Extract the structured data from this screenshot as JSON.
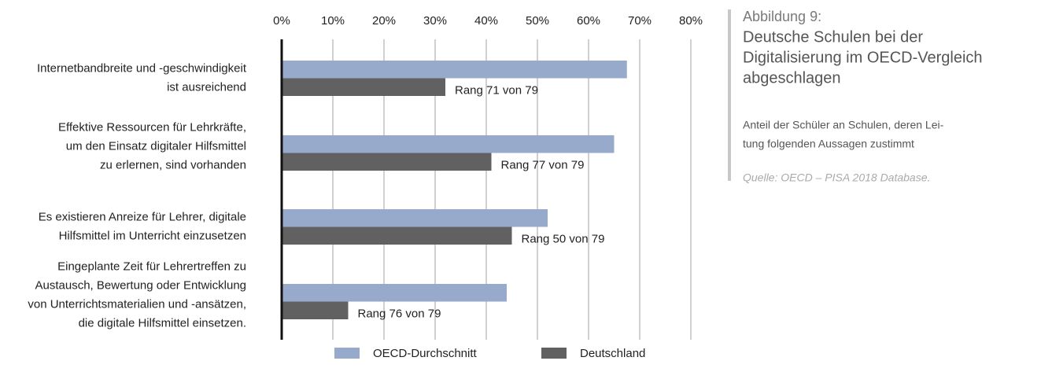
{
  "chart_data": {
    "type": "barh",
    "figure_label": "Abbildung 9:",
    "title": [
      "Deutsche Schulen bei der",
      "Digitalisierung im OECD-Vergleich",
      "abgeschlagen"
    ],
    "subtitle": [
      "Anteil der Schüler an Schulen, deren Lei-",
      "tung folgenden Aussagen zustimmt"
    ],
    "source": "Quelle: OECD – PISA 2018 Database.",
    "categories": [
      [
        "Internetbandbreite und -geschwindigkeit",
        "ist ausreichend"
      ],
      [
        "Effektive Ressourcen für Lehrkräfte,",
        "um den Einsatz digitaler Hilfsmittel",
        "zu erlernen, sind vorhanden"
      ],
      [
        "Es existieren Anreize für Lehrer, digitale",
        "Hilfsmittel im Unterricht einzusetzen"
      ],
      [
        "Eingeplante Zeit für Lehrertreffen zu",
        "Austausch, Bewertung oder Entwicklung",
        "von Unterrichtsmaterialien und -ansätzen,",
        "die digitale Hilfsmittel einsetzen."
      ]
    ],
    "series": [
      {
        "name": "OECD-Durchschnitt",
        "color": "#98aacb",
        "values": [
          67.5,
          65,
          52,
          44
        ]
      },
      {
        "name": "Deutschland",
        "color": "#616161",
        "values": [
          32,
          41,
          45,
          13
        ],
        "annotations": [
          "Rang 71 von 79",
          "Rang 77 von 79",
          "Rang 50 von 79",
          "Rang 76 von 79"
        ]
      }
    ],
    "xlim": [
      0,
      80
    ],
    "xticks": [
      {
        "value": 0,
        "label": "0%"
      },
      {
        "value": 10,
        "label": "10%"
      },
      {
        "value": 20,
        "label": "20%"
      },
      {
        "value": 30,
        "label": "30%"
      },
      {
        "value": 40,
        "label": "40%"
      },
      {
        "value": 50,
        "label": "50%"
      },
      {
        "value": 60,
        "label": "60%"
      },
      {
        "value": 70,
        "label": "70%"
      },
      {
        "value": 80,
        "label": "80%"
      }
    ],
    "grid": true,
    "legend": "bottom"
  }
}
